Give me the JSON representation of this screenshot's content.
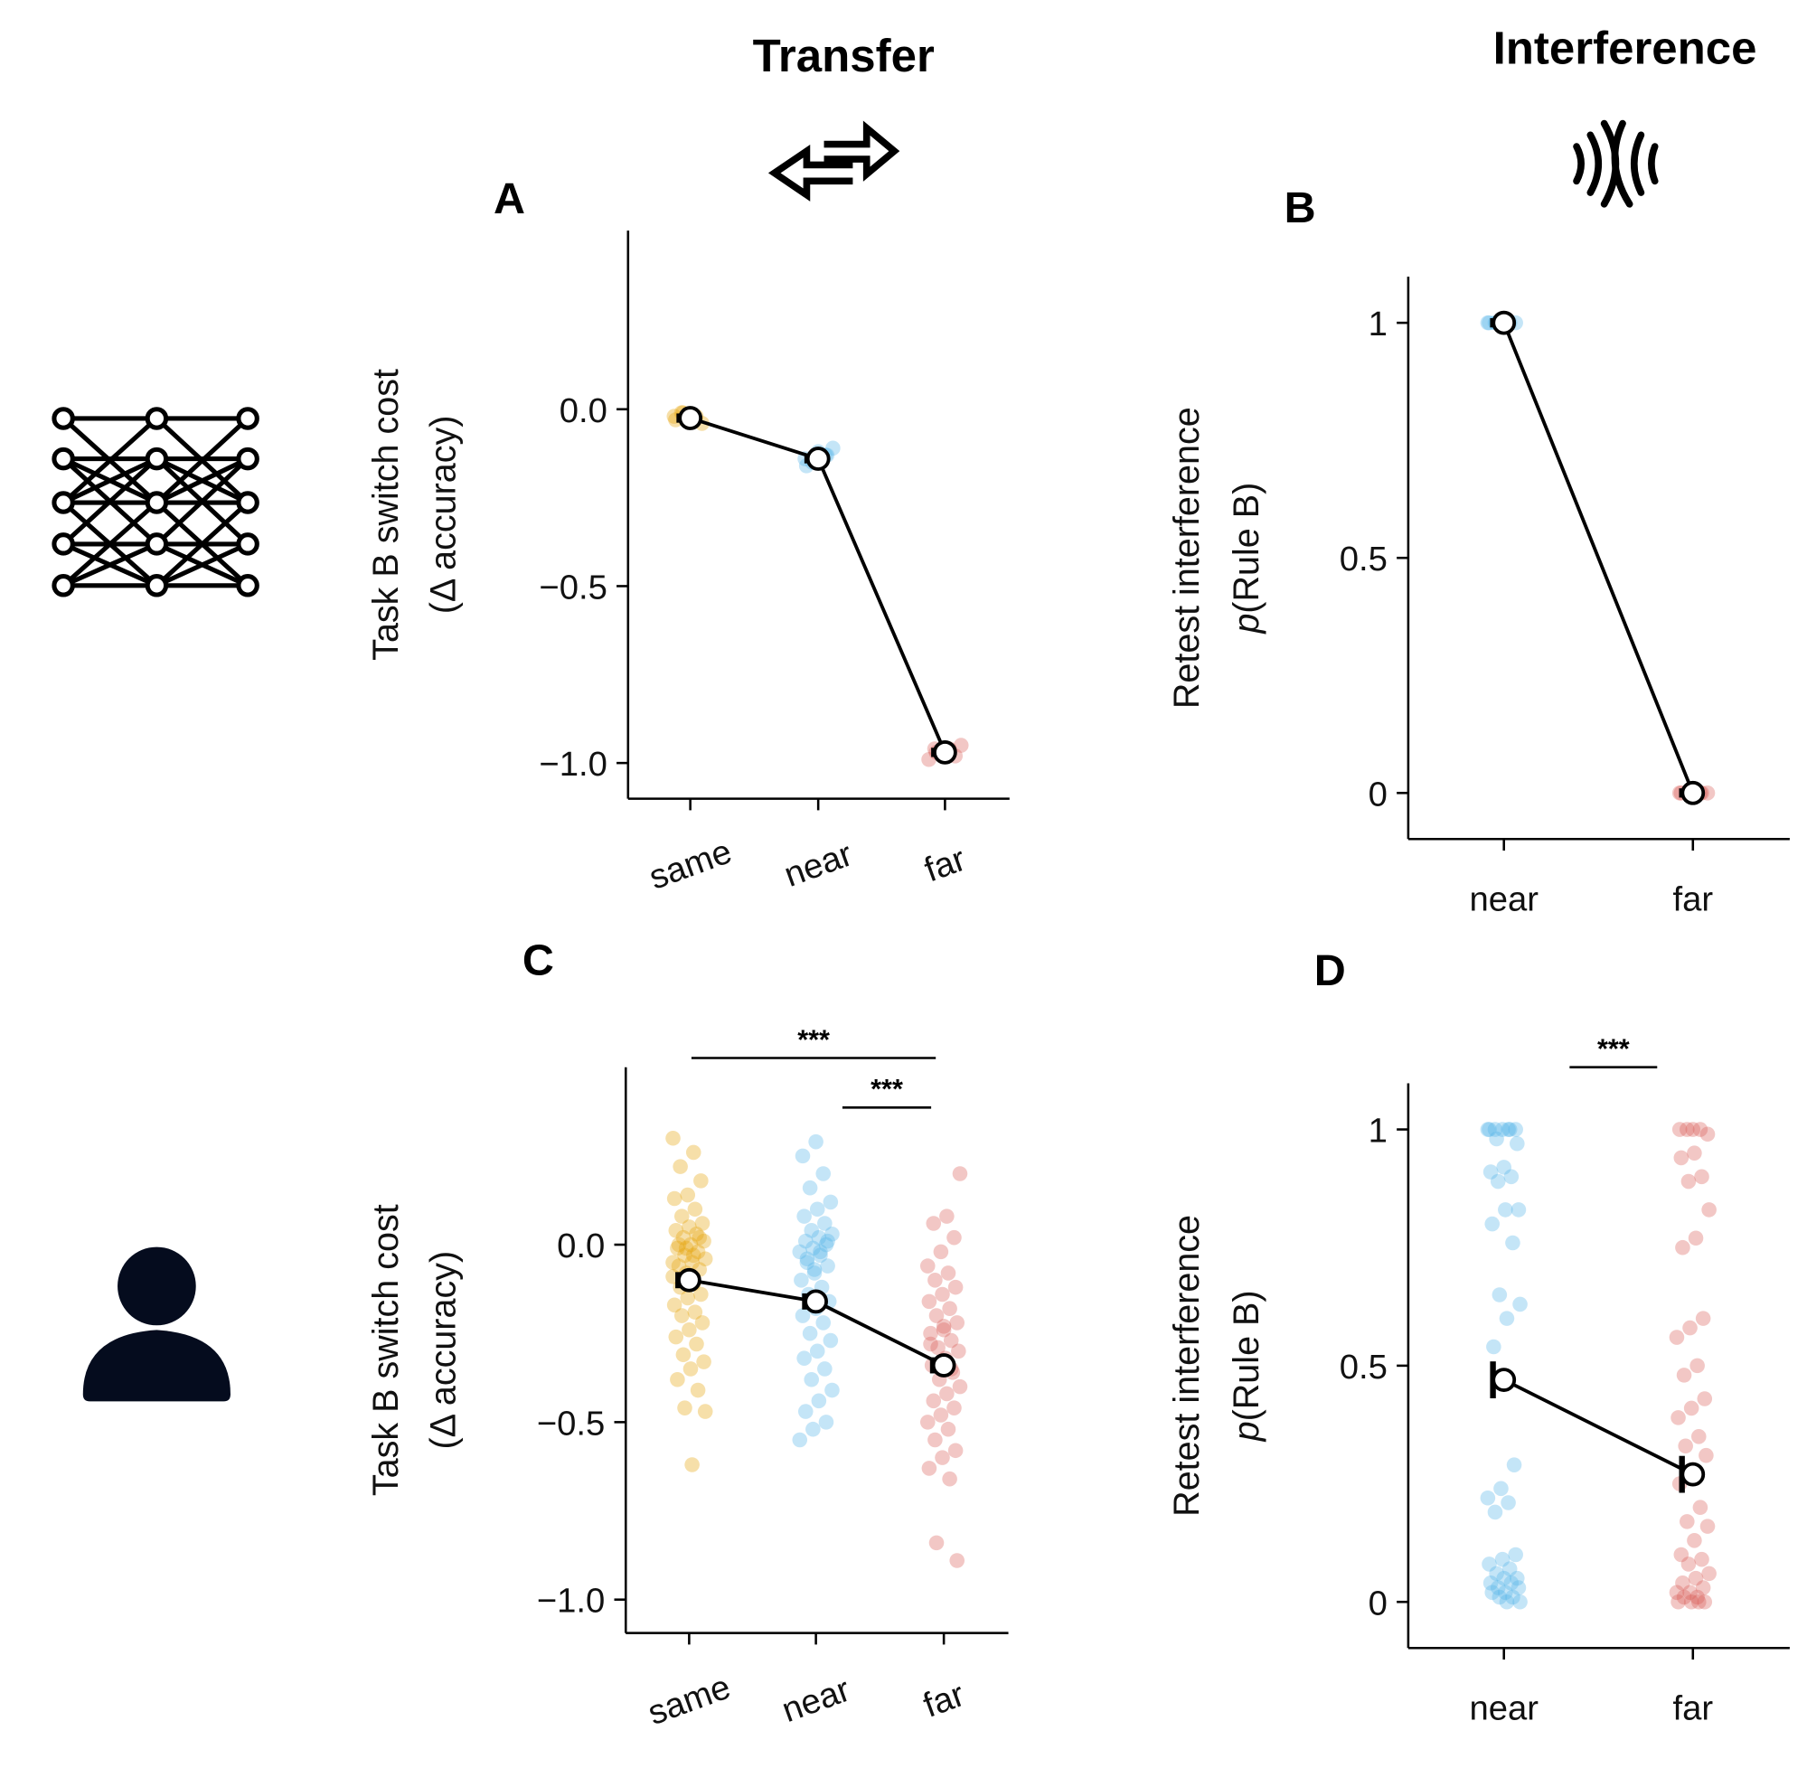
{
  "headers": {
    "transfer": "Transfer",
    "interference": "Interference"
  },
  "icons": {
    "left_top": "neural-network-icon",
    "left_bottom": "person-icon",
    "transfer": "bidirectional-arrow-icon",
    "interference": "interference-waves-icon"
  },
  "colors": {
    "same": "#E6A20A",
    "near": "#56B4E9",
    "far": "#D95F5A"
  },
  "chart_data": [
    {
      "panel": "A",
      "type": "scatter",
      "ylabel_line1": "Task B switch cost",
      "ylabel_line2": "(Δ accuracy)",
      "categories": [
        "same",
        "near",
        "far"
      ],
      "yticks": [
        "0.0",
        "−0.5",
        "−1.0"
      ],
      "ytick_values": [
        0,
        -0.5,
        -1.0
      ],
      "ylim": [
        -1.1,
        0.5
      ],
      "means": [
        -0.025,
        -0.14,
        -0.97
      ],
      "points": [
        [
          -0.02,
          -0.03,
          -0.01,
          -0.04,
          -0.02,
          -0.03,
          -0.02,
          -0.01
        ],
        [
          -0.12,
          -0.14,
          -0.13,
          -0.15,
          -0.11,
          -0.14,
          -0.16,
          -0.13
        ],
        [
          -0.95,
          -0.97,
          -0.96,
          -0.98,
          -0.97,
          -0.99,
          -0.96,
          -0.97
        ]
      ]
    },
    {
      "panel": "B",
      "type": "scatter",
      "ylabel_line1": "Retest interference",
      "ylabel_italic": "p",
      "ylabel_line2": "(Rule B)",
      "categories": [
        "near",
        "far"
      ],
      "yticks": [
        "1",
        "0.5",
        "0"
      ],
      "ytick_values": [
        1,
        0.5,
        0
      ],
      "ylim": [
        -0.1,
        1.1
      ],
      "means": [
        1.0,
        0.0
      ],
      "points": [
        [
          1,
          1,
          1,
          1,
          1,
          1,
          1,
          1
        ],
        [
          0,
          0,
          0,
          0,
          0,
          0,
          0,
          0
        ]
      ]
    },
    {
      "panel": "C",
      "type": "scatter",
      "ylabel_line1": "Task B switch cost",
      "ylabel_line2": "(Δ accuracy)",
      "categories": [
        "same",
        "near",
        "far"
      ],
      "yticks": [
        "0.0",
        "−0.5",
        "−1.0"
      ],
      "ytick_values": [
        0,
        -0.5,
        -1.0
      ],
      "ylim": [
        -1.1,
        0.5
      ],
      "means": [
        -0.1,
        -0.16,
        -0.34
      ],
      "significance": [
        {
          "from": "same",
          "to": "far",
          "label": "***"
        },
        {
          "from": "near",
          "to": "far",
          "label": "***"
        }
      ],
      "points": [
        [
          0.3,
          0.26,
          0.22,
          0.18,
          0.14,
          0.13,
          0.1,
          0.08,
          0.06,
          0.05,
          0.04,
          0.03,
          0.02,
          0.01,
          0.0,
          -0.01,
          -0.02,
          -0.03,
          -0.04,
          -0.05,
          -0.06,
          -0.07,
          -0.08,
          -0.09,
          -0.11,
          -0.12,
          -0.14,
          -0.15,
          -0.17,
          -0.19,
          -0.2,
          -0.22,
          -0.24,
          -0.26,
          -0.28,
          -0.31,
          -0.33,
          -0.35,
          -0.38,
          -0.41,
          -0.46,
          -0.47,
          -0.62,
          0.0,
          0.02,
          -0.01,
          -0.05,
          -0.03
        ],
        [
          0.29,
          0.25,
          0.2,
          0.16,
          0.12,
          0.1,
          0.08,
          0.06,
          0.04,
          0.03,
          0.02,
          0.01,
          0.0,
          -0.01,
          -0.02,
          -0.03,
          -0.05,
          -0.06,
          -0.08,
          -0.1,
          -0.12,
          -0.14,
          -0.16,
          -0.18,
          -0.2,
          -0.22,
          -0.25,
          -0.27,
          -0.3,
          -0.32,
          -0.35,
          -0.38,
          -0.41,
          -0.44,
          -0.47,
          -0.5,
          -0.52,
          -0.55,
          -0.02,
          -0.04,
          0.01,
          -0.07
        ],
        [
          0.2,
          0.08,
          0.06,
          0.02,
          -0.02,
          -0.06,
          -0.08,
          -0.1,
          -0.12,
          -0.14,
          -0.16,
          -0.18,
          -0.2,
          -0.22,
          -0.24,
          -0.25,
          -0.27,
          -0.29,
          -0.3,
          -0.32,
          -0.34,
          -0.36,
          -0.38,
          -0.4,
          -0.42,
          -0.44,
          -0.46,
          -0.48,
          -0.5,
          -0.52,
          -0.55,
          -0.58,
          -0.6,
          -0.63,
          -0.66,
          -0.84,
          -0.89,
          -0.23,
          -0.28,
          -0.35
        ]
      ]
    },
    {
      "panel": "D",
      "type": "scatter",
      "ylabel_line1": "Retest interference",
      "ylabel_italic": "p",
      "ylabel_line2": "(Rule B)",
      "categories": [
        "near",
        "far"
      ],
      "yticks": [
        "1",
        "0.5",
        "0"
      ],
      "ytick_values": [
        1,
        0.5,
        0
      ],
      "ylim": [
        -0.1,
        1.1
      ],
      "means": [
        0.47,
        0.27
      ],
      "significance": [
        {
          "from": "near",
          "to": "far",
          "label": "***"
        }
      ],
      "points": [
        [
          1,
          1,
          1,
          1,
          1,
          1,
          1,
          0.98,
          0.97,
          0.92,
          0.91,
          0.9,
          0.89,
          0.83,
          0.83,
          0.8,
          0.76,
          0.65,
          0.63,
          0.6,
          0.54,
          0.29,
          0.24,
          0.22,
          0.21,
          0.19,
          0.1,
          0.09,
          0.08,
          0.07,
          0.06,
          0.05,
          0.05,
          0.04,
          0.04,
          0.03,
          0.03,
          0.02,
          0.02,
          0.01,
          0.01,
          0.0,
          0.0
        ],
        [
          1,
          1,
          1,
          1,
          0.99,
          0.95,
          0.94,
          0.9,
          0.89,
          0.83,
          0.77,
          0.75,
          0.6,
          0.58,
          0.56,
          0.5,
          0.48,
          0.43,
          0.41,
          0.39,
          0.35,
          0.33,
          0.31,
          0.28,
          0.25,
          0.2,
          0.17,
          0.16,
          0.13,
          0.1,
          0.09,
          0.08,
          0.06,
          0.05,
          0.04,
          0.03,
          0.02,
          0.02,
          0.01,
          0.01,
          0.0,
          0.0,
          0.0,
          0.0
        ]
      ]
    }
  ]
}
